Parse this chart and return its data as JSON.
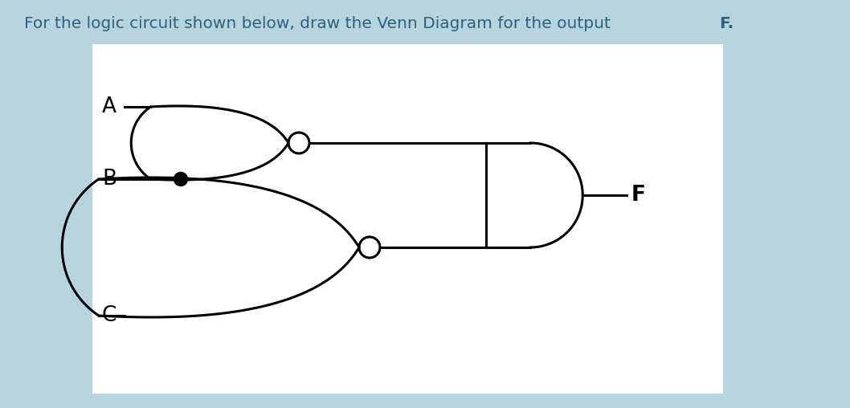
{
  "bg_color": "#b8d4de",
  "panel_color": "#ffffff",
  "title_prefix": "For the logic circuit shown below, draw the Venn Diagram for the output ",
  "title_bold": "F.",
  "title_color": "#2e6080",
  "title_fontsize": 14.5,
  "label_A": "A",
  "label_B": "B",
  "label_C": "C",
  "label_F": "F",
  "label_fontsize": 19,
  "line_color": "#000000",
  "line_width": 2.2,
  "bubble_r": 0.13
}
